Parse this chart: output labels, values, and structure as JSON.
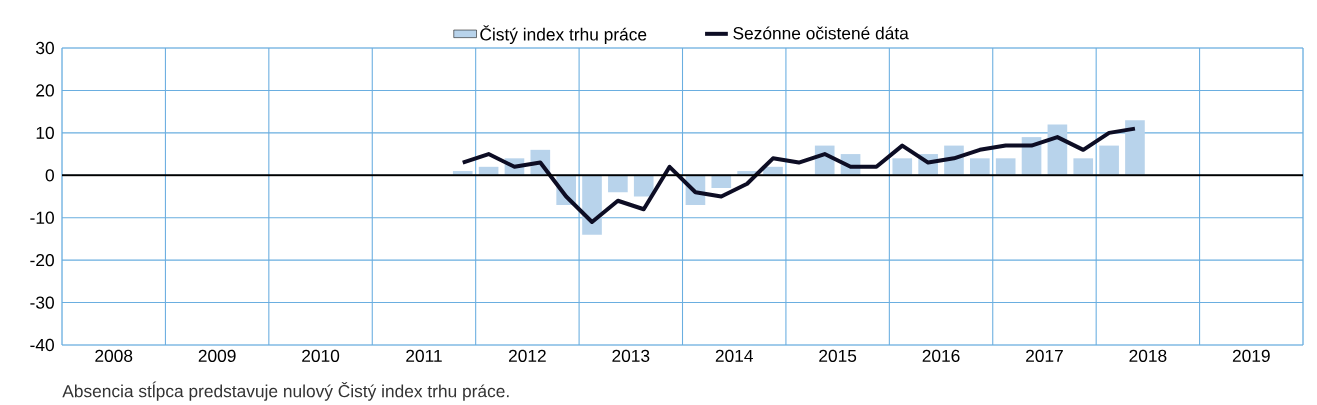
{
  "chart_data": {
    "type": "bar",
    "x": [
      2011.875,
      2012.125,
      2012.375,
      2012.625,
      2012.875,
      2013.125,
      2013.375,
      2013.625,
      2013.875,
      2014.125,
      2014.375,
      2014.625,
      2014.875,
      2015.125,
      2015.375,
      2015.625,
      2015.875,
      2016.125,
      2016.375,
      2016.625,
      2016.875,
      2017.125,
      2017.375,
      2017.625,
      2017.875,
      2018.125,
      2018.375
    ],
    "series": [
      {
        "name": "Čistý index trhu práce",
        "color": "#b8d3eb",
        "values": [
          1,
          2,
          4,
          6,
          -7,
          -14,
          -4,
          -5,
          0,
          -7,
          -3,
          1,
          2,
          0,
          7,
          5,
          0,
          4,
          5,
          7,
          4,
          4,
          9,
          12,
          4,
          7,
          13
        ]
      },
      {
        "name": "Sezónne očistené dáta",
        "type": "line",
        "color": "#0d0d24",
        "values": [
          3,
          5,
          2,
          3,
          -5,
          -11,
          -6,
          -8,
          2,
          -4,
          -5,
          -2,
          4,
          3,
          5,
          2,
          2,
          7,
          3,
          4,
          6,
          7,
          7,
          9,
          6,
          10,
          11
        ]
      }
    ],
    "xlim": [
      2008,
      2020
    ],
    "xticks": [
      {
        "value": 2008,
        "label": null
      },
      {
        "value": 2008.5,
        "label": "2008"
      },
      {
        "value": 2009,
        "label": null
      },
      {
        "value": 2009.5,
        "label": "2009"
      },
      {
        "value": 2010,
        "label": null
      },
      {
        "value": 2010.5,
        "label": "2010"
      },
      {
        "value": 2011,
        "label": null
      },
      {
        "value": 2011.5,
        "label": "2011"
      },
      {
        "value": 2012,
        "label": null
      },
      {
        "value": 2012.5,
        "label": "2012"
      },
      {
        "value": 2013,
        "label": null
      },
      {
        "value": 2013.5,
        "label": "2013"
      },
      {
        "value": 2014,
        "label": null
      },
      {
        "value": 2014.5,
        "label": "2014"
      },
      {
        "value": 2015,
        "label": null
      },
      {
        "value": 2015.5,
        "label": "2015"
      },
      {
        "value": 2016,
        "label": null
      },
      {
        "value": 2016.5,
        "label": "2016"
      },
      {
        "value": 2017,
        "label": null
      },
      {
        "value": 2017.5,
        "label": "2017"
      },
      {
        "value": 2018,
        "label": null
      },
      {
        "value": 2018.5,
        "label": "2018"
      },
      {
        "value": 2019,
        "label": null
      },
      {
        "value": 2019.5,
        "label": "2019"
      },
      {
        "value": 2020,
        "label": null
      }
    ],
    "ylim": [
      -40,
      30
    ],
    "yticks": [
      -40,
      -30,
      -20,
      -10,
      0,
      10,
      20,
      30
    ],
    "grid": true,
    "legend": "top",
    "ref_lines": [
      {
        "axis": "y",
        "value": 0,
        "color": "#000000"
      }
    ],
    "annotations": [
      "Absencia stĺpca predstavuje nulový Čistý index trhu práce."
    ]
  }
}
